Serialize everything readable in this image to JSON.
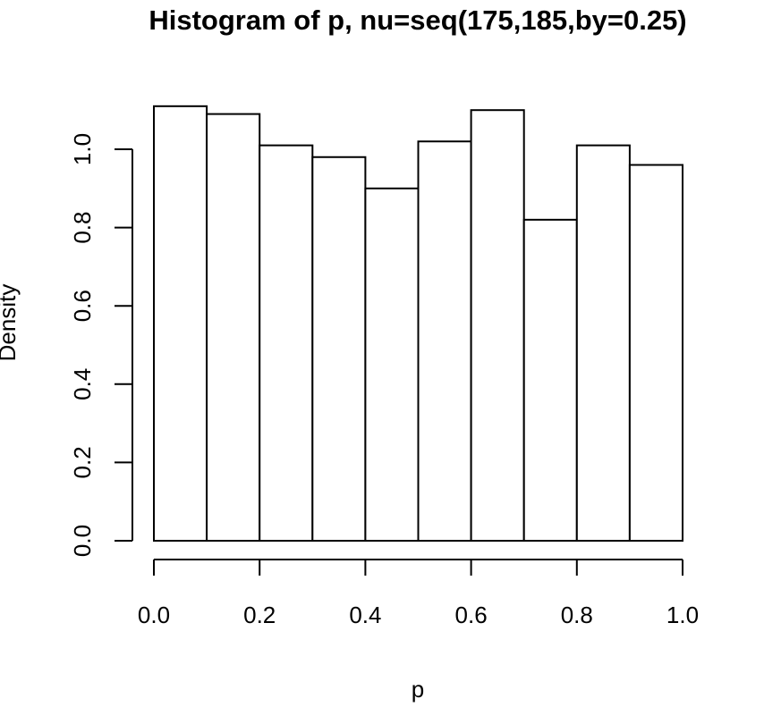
{
  "chart_data": {
    "type": "bar",
    "title": "Histogram of p, nu=seq(175,185,by=0.25)",
    "xlabel": "p",
    "ylabel": "Density",
    "bin_edges": [
      0.0,
      0.1,
      0.2,
      0.3,
      0.4,
      0.5,
      0.6,
      0.7,
      0.8,
      0.9,
      1.0
    ],
    "values": [
      1.11,
      1.09,
      1.01,
      0.98,
      0.9,
      1.02,
      1.1,
      0.82,
      1.01,
      0.96
    ],
    "xlim": [
      0.0,
      1.0
    ],
    "ylim": [
      0.0,
      1.0
    ],
    "x_ticks": [
      0.0,
      0.2,
      0.4,
      0.6,
      0.8,
      1.0
    ],
    "x_tick_labels": [
      "0.0",
      "0.2",
      "0.4",
      "0.6",
      "0.8",
      "1.0"
    ],
    "y_ticks": [
      0.0,
      0.2,
      0.4,
      0.6,
      0.8,
      1.0
    ],
    "y_tick_labels": [
      "0.0",
      "0.2",
      "0.4",
      "0.6",
      "0.8",
      "1.0"
    ],
    "grid": false,
    "colors": {
      "bar_fill": "#ffffff",
      "bar_stroke": "#000000",
      "background": "#ffffff"
    }
  }
}
